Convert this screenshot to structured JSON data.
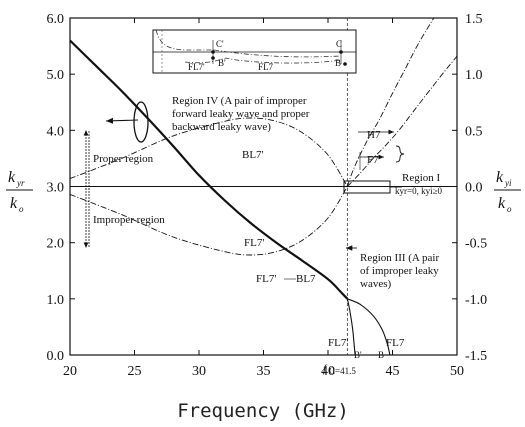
{
  "chart_data": {
    "type": "line",
    "xlabel": "Frequency (GHz)",
    "ylabel_left": {
      "num": "k",
      "num_sub": "yr",
      "den": "k",
      "den_sub": "o"
    },
    "ylabel_right": {
      "num": "k",
      "num_sub": "yi",
      "den": "k",
      "den_sub": "o"
    },
    "xlim": [
      20,
      50
    ],
    "ylim_left": [
      0,
      6
    ],
    "ylim_right": [
      -1.5,
      1.5
    ],
    "x_ticks": [
      "20",
      "25",
      "30",
      "35",
      "40",
      "45",
      "50"
    ],
    "y_left_ticks": [
      "0.0",
      "1.0",
      "2.0",
      "3.0",
      "4.0",
      "5.0",
      "6.0"
    ],
    "y_right_ticks": [
      "-1.5",
      "-1.0",
      "-0.5",
      "0.0",
      "0.5",
      "1.0",
      "1.5"
    ],
    "fc_x": 41.5,
    "series": [
      {
        "name": "FL7 (k_yr)",
        "axis": "left",
        "style": "solid-bold",
        "x": [
          20,
          22,
          24,
          26,
          28,
          30,
          32,
          34,
          36,
          38,
          40,
          41,
          41.5
        ],
        "y": [
          5.6,
          5.15,
          4.7,
          4.22,
          3.72,
          3.2,
          2.75,
          2.35,
          2.0,
          1.68,
          1.35,
          1.12,
          1.0
        ]
      },
      {
        "name": "FL7' (k_yr, below f_c)",
        "axis": "left",
        "style": "solid",
        "x": [
          41.5,
          41.7,
          41.9,
          42.0,
          42.1
        ],
        "y": [
          1.0,
          0.78,
          0.48,
          0.25,
          0.0
        ]
      },
      {
        "name": "FL7 (k_yr, below f_c)",
        "axis": "left",
        "style": "solid",
        "x": [
          41.5,
          42.5,
          43.5,
          44.2,
          44.6,
          44.8
        ],
        "y": [
          1.0,
          0.9,
          0.7,
          0.45,
          0.2,
          0.0
        ]
      },
      {
        "name": "BL7 (k_yi)",
        "axis": "right",
        "style": "dash-dot",
        "x": [
          20,
          24,
          28,
          32,
          34,
          36,
          38,
          40,
          41.5
        ],
        "y": [
          0.07,
          0.25,
          0.45,
          0.58,
          0.61,
          0.58,
          0.48,
          0.28,
          0.0
        ]
      },
      {
        "name": "FL7' (k_yi)",
        "axis": "right",
        "style": "dash-dot",
        "x": [
          20,
          24,
          28,
          32,
          34,
          36,
          38,
          40,
          41.5
        ],
        "y": [
          -0.07,
          -0.25,
          -0.45,
          -0.58,
          -0.61,
          -0.58,
          -0.48,
          -0.28,
          0.0
        ]
      },
      {
        "name": "H7",
        "axis": "right",
        "style": "dash-dot",
        "x": [
          41.5,
          42,
          43,
          44,
          45,
          46,
          47,
          48.2
        ],
        "y": [
          0.0,
          0.16,
          0.4,
          0.6,
          0.83,
          1.05,
          1.27,
          1.5
        ]
      },
      {
        "name": "F7",
        "axis": "right",
        "style": "dash-dot",
        "x": [
          41.5,
          42.5,
          43.5,
          44.5,
          45.5,
          46.5,
          47.5,
          49,
          50
        ],
        "y": [
          0.0,
          0.12,
          0.25,
          0.37,
          0.5,
          0.65,
          0.8,
          1.02,
          1.16
        ]
      }
    ],
    "annotations": {
      "region_iv": [
        "Region IV (A pair of improper",
        "forward leaky wave and proper",
        "backward leaky wave)"
      ],
      "region_iii": [
        "Region III (A pair",
        "of improper leaky",
        "waves)"
      ],
      "region_i": "Region I",
      "region_i_cond": "kyr=0, kyi≥0",
      "proper": "Proper region",
      "improper": "Improper region",
      "bl7_upper": "BL7'",
      "fl7p_lower": "FL7'",
      "fl7p_mid": "FL7'",
      "bl7_mid": "BL7",
      "h7": "H7",
      "f7": "F7",
      "fl7p_bottom": "FL7'",
      "fl7_bottom": "FL7",
      "fc": "f",
      "fc_sub": "C=41.5",
      "b_prime": "B'",
      "b_bottom": "B",
      "inset_c_prime": "C'",
      "inset_c": "C",
      "inset_b_prime": "B'",
      "inset_b": "B",
      "inset_fl7p": "FL7'",
      "inset_fl7": "FL7"
    }
  }
}
